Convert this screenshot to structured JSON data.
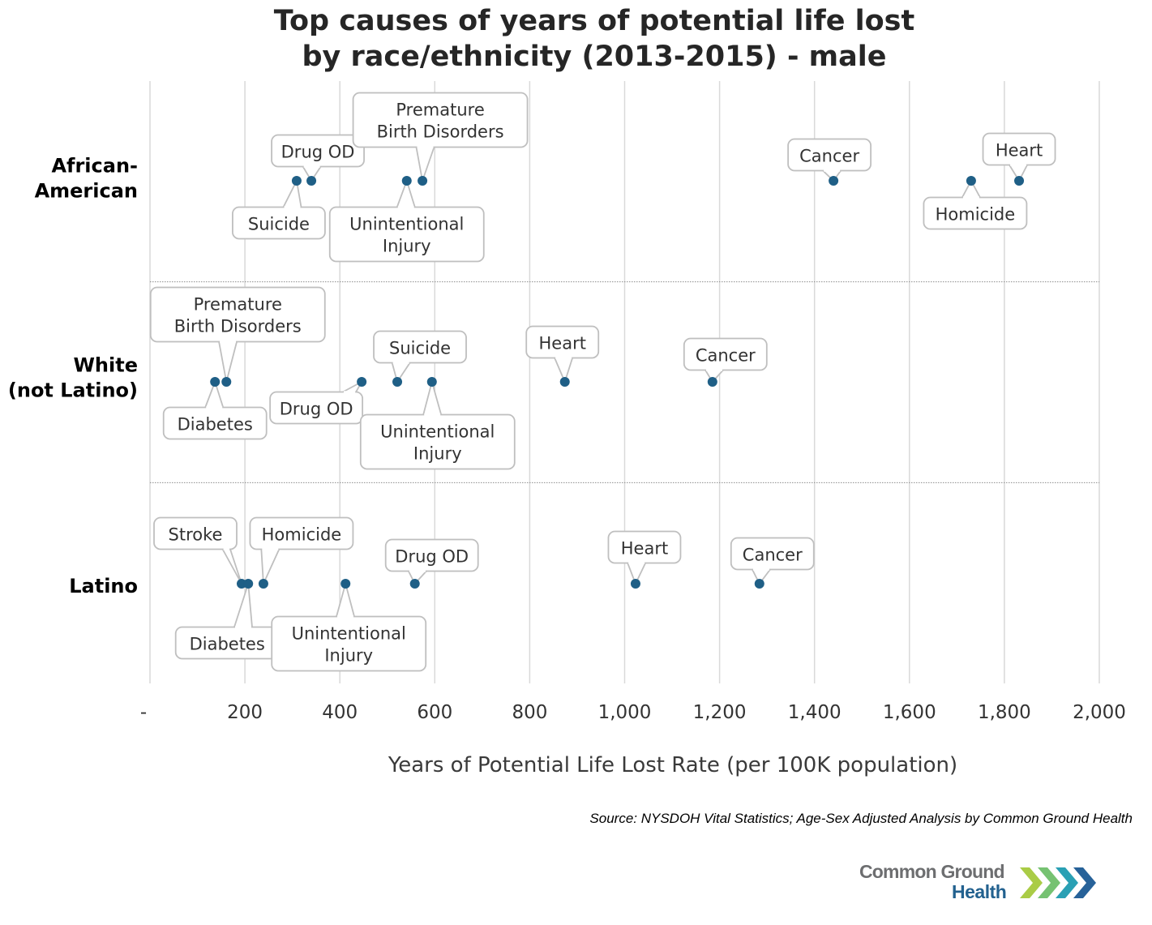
{
  "chart_data": {
    "type": "scatter",
    "title": [
      "Top causes of years of potential life lost",
      "by race/ethnicity (2013-2015) - male"
    ],
    "xlabel": "Years of Potential Life Lost Rate (per 100K population)",
    "ylabel": "",
    "xlim": [
      0,
      2000
    ],
    "x_ticks": [
      0,
      200,
      400,
      600,
      800,
      1000,
      1200,
      1400,
      1600,
      1800,
      2000
    ],
    "x_tick_labels": [
      "-",
      "200",
      "400",
      "600",
      "800",
      "1,000",
      "1,200",
      "1,400",
      "1,600",
      "1,800",
      "2,000"
    ],
    "grid": "vertical",
    "marker_color": "#1f5f86",
    "categories": [
      [
        "African-",
        "American"
      ],
      [
        "White",
        "(not Latino)"
      ],
      [
        "Latino"
      ]
    ],
    "series": [
      {
        "name": "African-American",
        "points": [
          {
            "label": "Suicide",
            "x": 309,
            "callout": "below-left"
          },
          {
            "label": "Drug OD",
            "x": 340,
            "callout": "above"
          },
          {
            "label": "Unintentional Injury",
            "x": 541,
            "callout": "below"
          },
          {
            "label": "Premature Birth Disorders",
            "x": 574,
            "callout": "above"
          },
          {
            "label": "Cancer",
            "x": 1440,
            "callout": "above"
          },
          {
            "label": "Homicide",
            "x": 1730,
            "callout": "below"
          },
          {
            "label": "Heart",
            "x": 1831,
            "callout": "above"
          }
        ]
      },
      {
        "name": "White (not Latino)",
        "points": [
          {
            "label": "Diabetes",
            "x": 137,
            "callout": "below"
          },
          {
            "label": "Premature Birth Disorders",
            "x": 161,
            "callout": "above"
          },
          {
            "label": "Drug OD",
            "x": 446,
            "callout": "below-left"
          },
          {
            "label": "Suicide",
            "x": 521,
            "callout": "above"
          },
          {
            "label": "Unintentional Injury",
            "x": 594,
            "callout": "below"
          },
          {
            "label": "Heart",
            "x": 874,
            "callout": "above"
          },
          {
            "label": "Cancer",
            "x": 1185,
            "callout": "above"
          }
        ]
      },
      {
        "name": "Latino",
        "points": [
          {
            "label": "Stroke",
            "x": 193,
            "callout": "above-left"
          },
          {
            "label": "Diabetes",
            "x": 207,
            "callout": "below"
          },
          {
            "label": "Homicide",
            "x": 239,
            "callout": "above"
          },
          {
            "label": "Unintentional Injury",
            "x": 412,
            "callout": "below"
          },
          {
            "label": "Drug OD",
            "x": 558,
            "callout": "above"
          },
          {
            "label": "Heart",
            "x": 1023,
            "callout": "above"
          },
          {
            "label": "Cancer",
            "x": 1284,
            "callout": "above"
          }
        ]
      }
    ]
  },
  "source": "Source: NYSDOH Vital Statistics; Age-Sex Adjusted Analysis by Common Ground Health",
  "logo": {
    "line1": "Common Ground",
    "line2": "Health"
  }
}
